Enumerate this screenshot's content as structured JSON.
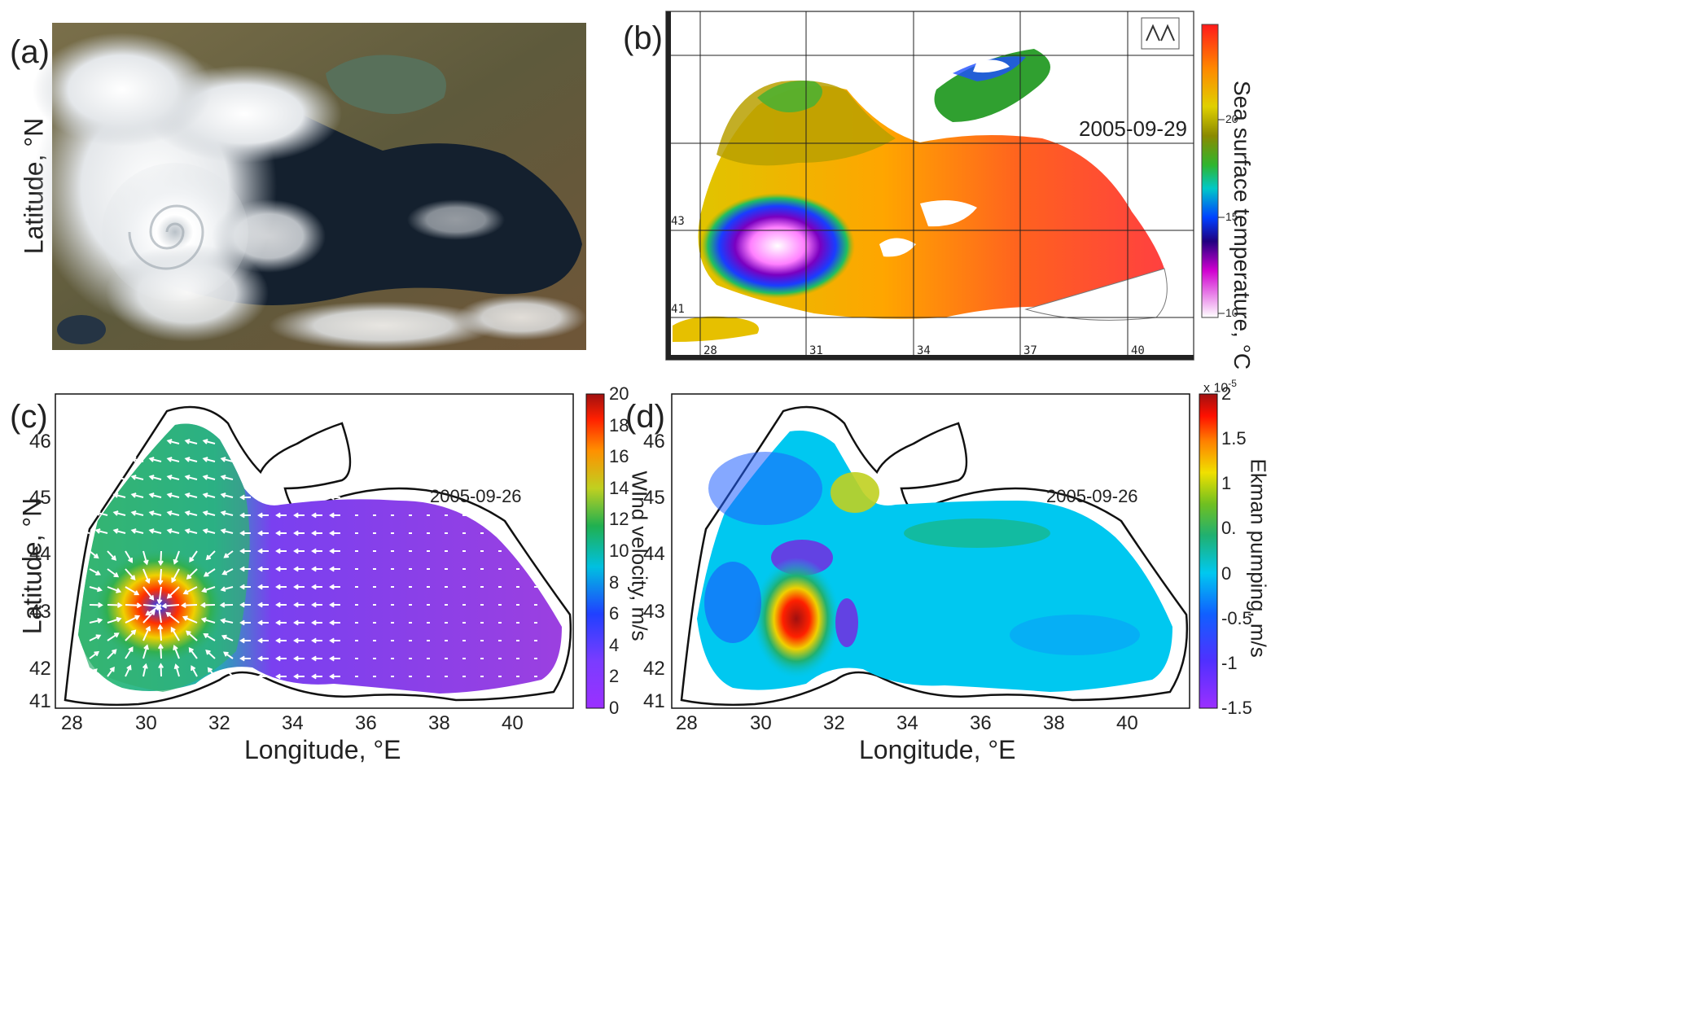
{
  "panels": {
    "a": {
      "label": "(a)",
      "ylabel": "Latitude, °N"
    },
    "b": {
      "label": "(b)",
      "date": "2005-09-29",
      "cbar_label": "Sea surface temperature, °C",
      "cbar_ticks": [
        "20",
        "15",
        "10"
      ],
      "lat_ticks": [
        "43",
        "41"
      ],
      "lon_ticks": [
        "28",
        "31",
        "34",
        "37",
        "40"
      ]
    },
    "c": {
      "label": "(c)",
      "date": "2005-09-26",
      "ylabel": "Latitude, °N",
      "xlabel": "Longitude, °E",
      "cbar_label": "WInd velocity, m/s",
      "cbar_ticks": [
        "20",
        "18",
        "16",
        "14",
        "12",
        "10",
        "8",
        "6",
        "4",
        "2",
        "0"
      ],
      "lat_ticks": [
        "46",
        "45",
        "44",
        "43",
        "42",
        "41"
      ],
      "lon_ticks": [
        "28",
        "30",
        "32",
        "34",
        "36",
        "38",
        "40"
      ]
    },
    "d": {
      "label": "(d)",
      "date": "2005-09-26",
      "xlabel": "Longitude, °E",
      "cbar_label": "Ekman pumping, m/s",
      "cbar_scale": "x 10",
      "cbar_exp": "-5",
      "cbar_ticks": [
        "2",
        "1.5",
        "1",
        "0.",
        "0",
        "-0.5",
        "-1",
        "-1.5"
      ],
      "lat_ticks": [
        "46",
        "45",
        "44",
        "43",
        "42",
        "41"
      ],
      "lon_ticks": [
        "28",
        "30",
        "32",
        "34",
        "36",
        "38",
        "40"
      ]
    }
  },
  "colors": {
    "sea_dark": "#14202e",
    "land": "#6b6140",
    "cloud": "#e9ecef",
    "wind_low": "#8a2be2",
    "wind_high": "#b22222",
    "ekman_bg": "#00c8f0"
  }
}
